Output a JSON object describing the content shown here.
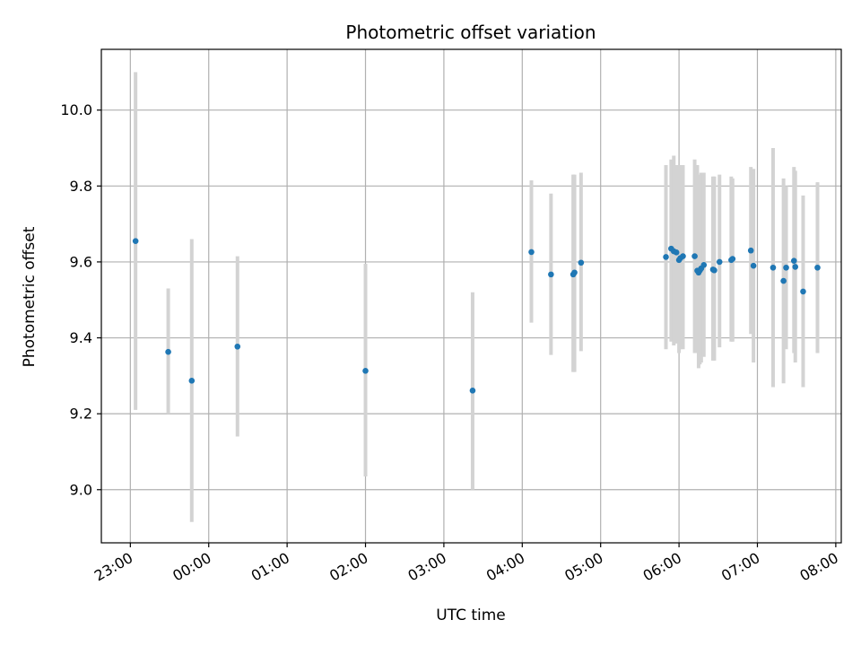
{
  "chart_data": {
    "type": "scatter",
    "title": "Photometric offset variation",
    "xlabel": "UTC time",
    "ylabel": "Photometric offset",
    "xlim_hours": [
      -1.37,
      8.07
    ],
    "ylim": [
      8.86,
      10.16
    ],
    "x_ticks": [
      {
        "hour": -1,
        "label": "23:00"
      },
      {
        "hour": 0,
        "label": "00:00"
      },
      {
        "hour": 1,
        "label": "01:00"
      },
      {
        "hour": 2,
        "label": "02:00"
      },
      {
        "hour": 3,
        "label": "03:00"
      },
      {
        "hour": 4,
        "label": "04:00"
      },
      {
        "hour": 5,
        "label": "05:00"
      },
      {
        "hour": 6,
        "label": "06:00"
      },
      {
        "hour": 7,
        "label": "07:00"
      },
      {
        "hour": 8,
        "label": "08:00"
      }
    ],
    "y_ticks": [
      {
        "value": 9.0,
        "label": "9.0"
      },
      {
        "value": 9.2,
        "label": "9.2"
      },
      {
        "value": 9.4,
        "label": "9.4"
      },
      {
        "value": 9.6,
        "label": "9.6"
      },
      {
        "value": 9.8,
        "label": "9.8"
      },
      {
        "value": 10.0,
        "label": "10.0"
      }
    ],
    "grid": true,
    "colors": {
      "points": "#1f77b4",
      "errorbars": "#d3d3d3",
      "grid": "#b0b0b0"
    },
    "points": [
      {
        "t": "23:04",
        "y": 9.655,
        "lo": 9.21,
        "hi": 10.1
      },
      {
        "t": "23:29",
        "y": 9.363,
        "lo": 9.2,
        "hi": 9.53
      },
      {
        "t": "23:47",
        "y": 9.287,
        "lo": 8.915,
        "hi": 9.66
      },
      {
        "t": "00:22",
        "y": 9.377,
        "lo": 9.14,
        "hi": 9.615
      },
      {
        "t": "02:00",
        "y": 9.313,
        "lo": 9.035,
        "hi": 9.595
      },
      {
        "t": "03:22",
        "y": 9.261,
        "lo": 9.0,
        "hi": 9.52
      },
      {
        "t": "04:07",
        "y": 9.626,
        "lo": 9.44,
        "hi": 9.815
      },
      {
        "t": "04:22",
        "y": 9.567,
        "lo": 9.355,
        "hi": 9.78
      },
      {
        "t": "04:39",
        "y": 9.567,
        "lo": 9.31,
        "hi": 9.83
      },
      {
        "t": "04:40",
        "y": 9.572,
        "lo": 9.31,
        "hi": 9.83
      },
      {
        "t": "04:45",
        "y": 9.598,
        "lo": 9.365,
        "hi": 9.835
      },
      {
        "t": "05:50",
        "y": 9.613,
        "lo": 9.37,
        "hi": 9.855
      },
      {
        "t": "05:54",
        "y": 9.635,
        "lo": 9.39,
        "hi": 9.87
      },
      {
        "t": "05:56",
        "y": 9.628,
        "lo": 9.38,
        "hi": 9.88
      },
      {
        "t": "05:58",
        "y": 9.625,
        "lo": 9.385,
        "hi": 9.855
      },
      {
        "t": "06:00",
        "y": 9.605,
        "lo": 9.36,
        "hi": 9.855
      },
      {
        "t": "06:01",
        "y": 9.61,
        "lo": 9.37,
        "hi": 9.855
      },
      {
        "t": "06:03",
        "y": 9.615,
        "lo": 9.37,
        "hi": 9.855
      },
      {
        "t": "06:12",
        "y": 9.615,
        "lo": 9.36,
        "hi": 9.87
      },
      {
        "t": "06:14",
        "y": 9.577,
        "lo": 9.36,
        "hi": 9.855
      },
      {
        "t": "06:15",
        "y": 9.572,
        "lo": 9.32,
        "hi": 9.82
      },
      {
        "t": "06:16",
        "y": 9.578,
        "lo": 9.33,
        "hi": 9.83
      },
      {
        "t": "06:17",
        "y": 9.583,
        "lo": 9.335,
        "hi": 9.835
      },
      {
        "t": "06:19",
        "y": 9.592,
        "lo": 9.35,
        "hi": 9.835
      },
      {
        "t": "06:26",
        "y": 9.58,
        "lo": 9.34,
        "hi": 9.825
      },
      {
        "t": "06:27",
        "y": 9.578,
        "lo": 9.34,
        "hi": 9.825
      },
      {
        "t": "06:31",
        "y": 9.6,
        "lo": 9.375,
        "hi": 9.83
      },
      {
        "t": "06:40",
        "y": 9.605,
        "lo": 9.39,
        "hi": 9.825
      },
      {
        "t": "06:41",
        "y": 9.608,
        "lo": 9.39,
        "hi": 9.82
      },
      {
        "t": "06:55",
        "y": 9.63,
        "lo": 9.41,
        "hi": 9.85
      },
      {
        "t": "06:57",
        "y": 9.59,
        "lo": 9.335,
        "hi": 9.845
      },
      {
        "t": "07:12",
        "y": 9.585,
        "lo": 9.27,
        "hi": 9.9
      },
      {
        "t": "07:20",
        "y": 9.55,
        "lo": 9.28,
        "hi": 9.82
      },
      {
        "t": "07:22",
        "y": 9.585,
        "lo": 9.37,
        "hi": 9.8
      },
      {
        "t": "07:28",
        "y": 9.603,
        "lo": 9.36,
        "hi": 9.85
      },
      {
        "t": "07:29",
        "y": 9.587,
        "lo": 9.335,
        "hi": 9.84
      },
      {
        "t": "07:35",
        "y": 9.522,
        "lo": 9.27,
        "hi": 9.775
      },
      {
        "t": "07:46",
        "y": 9.585,
        "lo": 9.36,
        "hi": 9.81
      }
    ]
  }
}
